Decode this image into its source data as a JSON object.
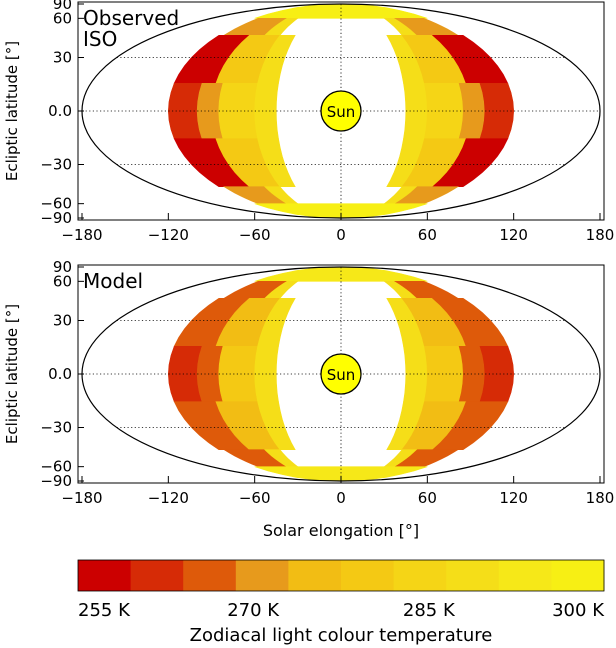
{
  "chart_data": [
    {
      "type": "heatmap",
      "panel_label": [
        "Observed",
        "ISO"
      ],
      "projection": "aitoff",
      "xlabel": "",
      "ylabel": "Ecliptic latitude [°]",
      "xlim": [
        -180,
        180
      ],
      "ylim": [
        -90,
        90
      ],
      "x_ticks": [
        "−180",
        "−120",
        "−60",
        "0",
        "60",
        "120",
        "180"
      ],
      "y_ticks": [
        "90",
        "60",
        "30",
        "0.0",
        "−30",
        "−60",
        "−90"
      ],
      "grid": "dotted",
      "center_label": "Sun",
      "cells_by_latitude_band": [
        {
          "lat_range": [
            60,
            90
          ],
          "segments": [
            {
              "elong": [
                -120,
                120
              ],
              "color_index": 9
            }
          ]
        },
        {
          "lat_range": [
            45,
            60
          ],
          "segments": [
            {
              "elong": [
                -115,
                -75
              ],
              "color_index": 3
            },
            {
              "elong": [
                -75,
                -60
              ],
              "color_index": 7
            },
            {
              "elong": [
                60,
                75
              ],
              "color_index": 7
            },
            {
              "elong": [
                75,
                115
              ],
              "color_index": 3
            }
          ]
        },
        {
          "lat_range": [
            15,
            45
          ],
          "segments": [
            {
              "elong": [
                -120,
                -90
              ],
              "color_index": 0
            },
            {
              "elong": [
                -90,
                -60
              ],
              "color_index": 5
            },
            {
              "elong": [
                -60,
                -45
              ],
              "color_index": 7
            },
            {
              "elong": [
                45,
                60
              ],
              "color_index": 7
            },
            {
              "elong": [
                60,
                90
              ],
              "color_index": 5
            },
            {
              "elong": [
                90,
                120
              ],
              "color_index": 0
            }
          ]
        },
        {
          "lat_range": [
            -15,
            15
          ],
          "segments": [
            {
              "elong": [
                -120,
                -100
              ],
              "color_index": 1
            },
            {
              "elong": [
                -100,
                -85
              ],
              "color_index": 3
            },
            {
              "elong": [
                -85,
                -60
              ],
              "color_index": 6
            },
            {
              "elong": [
                -60,
                -45
              ],
              "color_index": 7
            },
            {
              "elong": [
                45,
                60
              ],
              "color_index": 7
            },
            {
              "elong": [
                60,
                85
              ],
              "color_index": 6
            },
            {
              "elong": [
                85,
                100
              ],
              "color_index": 3
            },
            {
              "elong": [
                100,
                120
              ],
              "color_index": 1
            }
          ]
        },
        {
          "lat_range": [
            -45,
            -15
          ],
          "segments": [
            {
              "elong": [
                -120,
                -90
              ],
              "color_index": 0
            },
            {
              "elong": [
                -90,
                -60
              ],
              "color_index": 5
            },
            {
              "elong": [
                -60,
                -45
              ],
              "color_index": 7
            },
            {
              "elong": [
                45,
                60
              ],
              "color_index": 7
            },
            {
              "elong": [
                60,
                90
              ],
              "color_index": 5
            },
            {
              "elong": [
                90,
                120
              ],
              "color_index": 0
            }
          ]
        },
        {
          "lat_range": [
            -60,
            -45
          ],
          "segments": [
            {
              "elong": [
                -115,
                -75
              ],
              "color_index": 3
            },
            {
              "elong": [
                -75,
                -60
              ],
              "color_index": 7
            },
            {
              "elong": [
                60,
                75
              ],
              "color_index": 7
            },
            {
              "elong": [
                75,
                115
              ],
              "color_index": 3
            }
          ]
        },
        {
          "lat_range": [
            -90,
            -60
          ],
          "segments": [
            {
              "elong": [
                -120,
                120
              ],
              "color_index": 9
            }
          ]
        }
      ]
    },
    {
      "type": "heatmap",
      "panel_label": [
        "Model"
      ],
      "projection": "aitoff",
      "xlabel": "Solar elongation [°]",
      "ylabel": "Ecliptic latitude [°]",
      "xlim": [
        -180,
        180
      ],
      "ylim": [
        -90,
        90
      ],
      "x_ticks": [
        "−180",
        "−120",
        "−60",
        "0",
        "60",
        "120",
        "180"
      ],
      "y_ticks": [
        "90",
        "60",
        "30",
        "0.0",
        "−30",
        "−60",
        "−90"
      ],
      "grid": "dotted",
      "center_label": "Sun",
      "cells_by_latitude_band": [
        {
          "lat_range": [
            60,
            90
          ],
          "segments": [
            {
              "elong": [
                -120,
                120
              ],
              "color_index": 8
            }
          ]
        },
        {
          "lat_range": [
            45,
            60
          ],
          "segments": [
            {
              "elong": [
                -115,
                -75
              ],
              "color_index": 2
            },
            {
              "elong": [
                -75,
                -60
              ],
              "color_index": 7
            },
            {
              "elong": [
                60,
                75
              ],
              "color_index": 7
            },
            {
              "elong": [
                75,
                115
              ],
              "color_index": 2
            }
          ]
        },
        {
          "lat_range": [
            15,
            45
          ],
          "segments": [
            {
              "elong": [
                -120,
                -90
              ],
              "color_index": 2
            },
            {
              "elong": [
                -90,
                -60
              ],
              "color_index": 4
            },
            {
              "elong": [
                -60,
                -45
              ],
              "color_index": 7
            },
            {
              "elong": [
                45,
                60
              ],
              "color_index": 7
            },
            {
              "elong": [
                60,
                90
              ],
              "color_index": 4
            },
            {
              "elong": [
                90,
                120
              ],
              "color_index": 2
            }
          ]
        },
        {
          "lat_range": [
            -15,
            15
          ],
          "segments": [
            {
              "elong": [
                -120,
                -100
              ],
              "color_index": 1
            },
            {
              "elong": [
                -100,
                -85
              ],
              "color_index": 2
            },
            {
              "elong": [
                -85,
                -60
              ],
              "color_index": 5
            },
            {
              "elong": [
                -60,
                -45
              ],
              "color_index": 7
            },
            {
              "elong": [
                45,
                60
              ],
              "color_index": 7
            },
            {
              "elong": [
                60,
                85
              ],
              "color_index": 5
            },
            {
              "elong": [
                85,
                100
              ],
              "color_index": 2
            },
            {
              "elong": [
                100,
                120
              ],
              "color_index": 1
            }
          ]
        },
        {
          "lat_range": [
            -45,
            -15
          ],
          "segments": [
            {
              "elong": [
                -120,
                -90
              ],
              "color_index": 2
            },
            {
              "elong": [
                -90,
                -60
              ],
              "color_index": 4
            },
            {
              "elong": [
                -60,
                -45
              ],
              "color_index": 7
            },
            {
              "elong": [
                45,
                60
              ],
              "color_index": 7
            },
            {
              "elong": [
                60,
                90
              ],
              "color_index": 4
            },
            {
              "elong": [
                90,
                120
              ],
              "color_index": 2
            }
          ]
        },
        {
          "lat_range": [
            -60,
            -45
          ],
          "segments": [
            {
              "elong": [
                -115,
                -75
              ],
              "color_index": 2
            },
            {
              "elong": [
                -75,
                -60
              ],
              "color_index": 7
            },
            {
              "elong": [
                60,
                75
              ],
              "color_index": 7
            },
            {
              "elong": [
                75,
                115
              ],
              "color_index": 2
            }
          ]
        },
        {
          "lat_range": [
            -90,
            -60
          ],
          "segments": [
            {
              "elong": [
                -120,
                120
              ],
              "color_index": 8
            }
          ]
        }
      ]
    }
  ],
  "colorbar": {
    "colors": [
      "#cc0000",
      "#d62b06",
      "#de5a0a",
      "#e79a1c",
      "#f2bd14",
      "#f4c914",
      "#f5d516",
      "#f5de18",
      "#f6e818",
      "#f7ef14"
    ],
    "tick_labels": [
      "255 K",
      "270 K",
      "285 K",
      "300 K"
    ],
    "tick_positions": [
      0,
      0.333,
      0.667,
      1
    ],
    "label": "Zodiacal light colour temperature"
  }
}
